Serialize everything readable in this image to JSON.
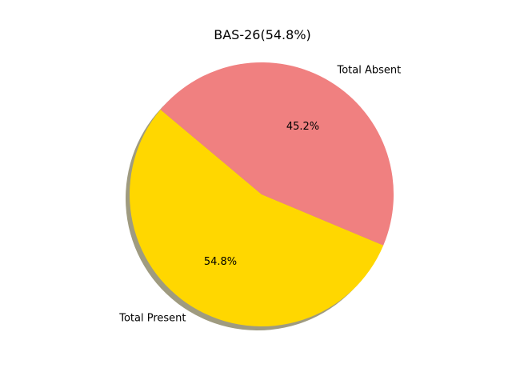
{
  "chart_data": {
    "type": "pie",
    "title": "BAS-26(54.8%)",
    "categories": [
      "Total Present",
      "Total Absent"
    ],
    "values": [
      54.8,
      45.2
    ],
    "value_labels": [
      "54.8%",
      "45.2%"
    ],
    "colors": [
      "#ffd700",
      "#f08080"
    ],
    "shadow": true,
    "start_angle_deg": 140,
    "counterclockwise": true
  }
}
